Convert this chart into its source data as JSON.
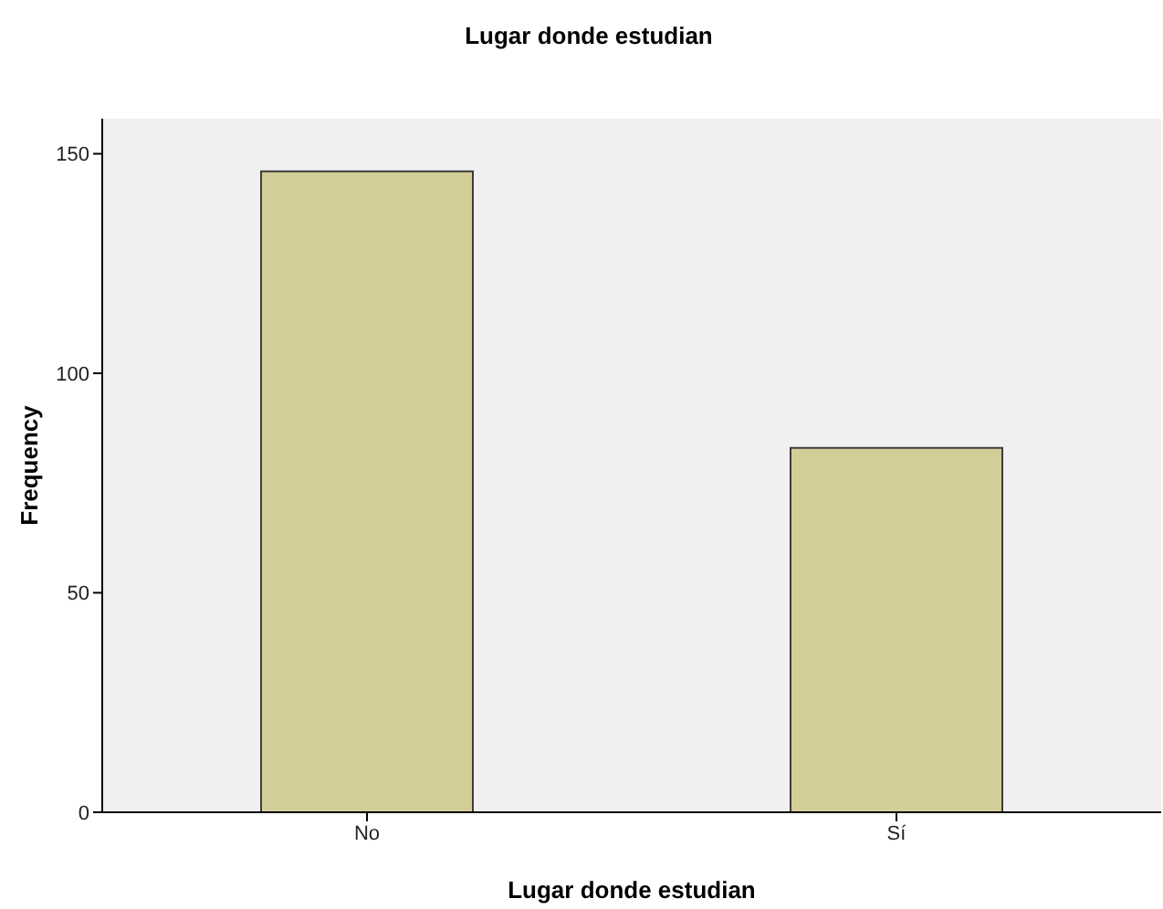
{
  "chart_data": {
    "type": "bar",
    "title": "Lugar donde estudian",
    "xlabel": "Lugar donde estudian",
    "ylabel": "Frequency",
    "categories": [
      "No",
      "Sí"
    ],
    "values": [
      146,
      83
    ],
    "color": "#d3ce97",
    "ylim": [
      0,
      158
    ],
    "yticks": [
      0,
      50,
      100,
      150
    ],
    "grid": false,
    "legend": false
  }
}
